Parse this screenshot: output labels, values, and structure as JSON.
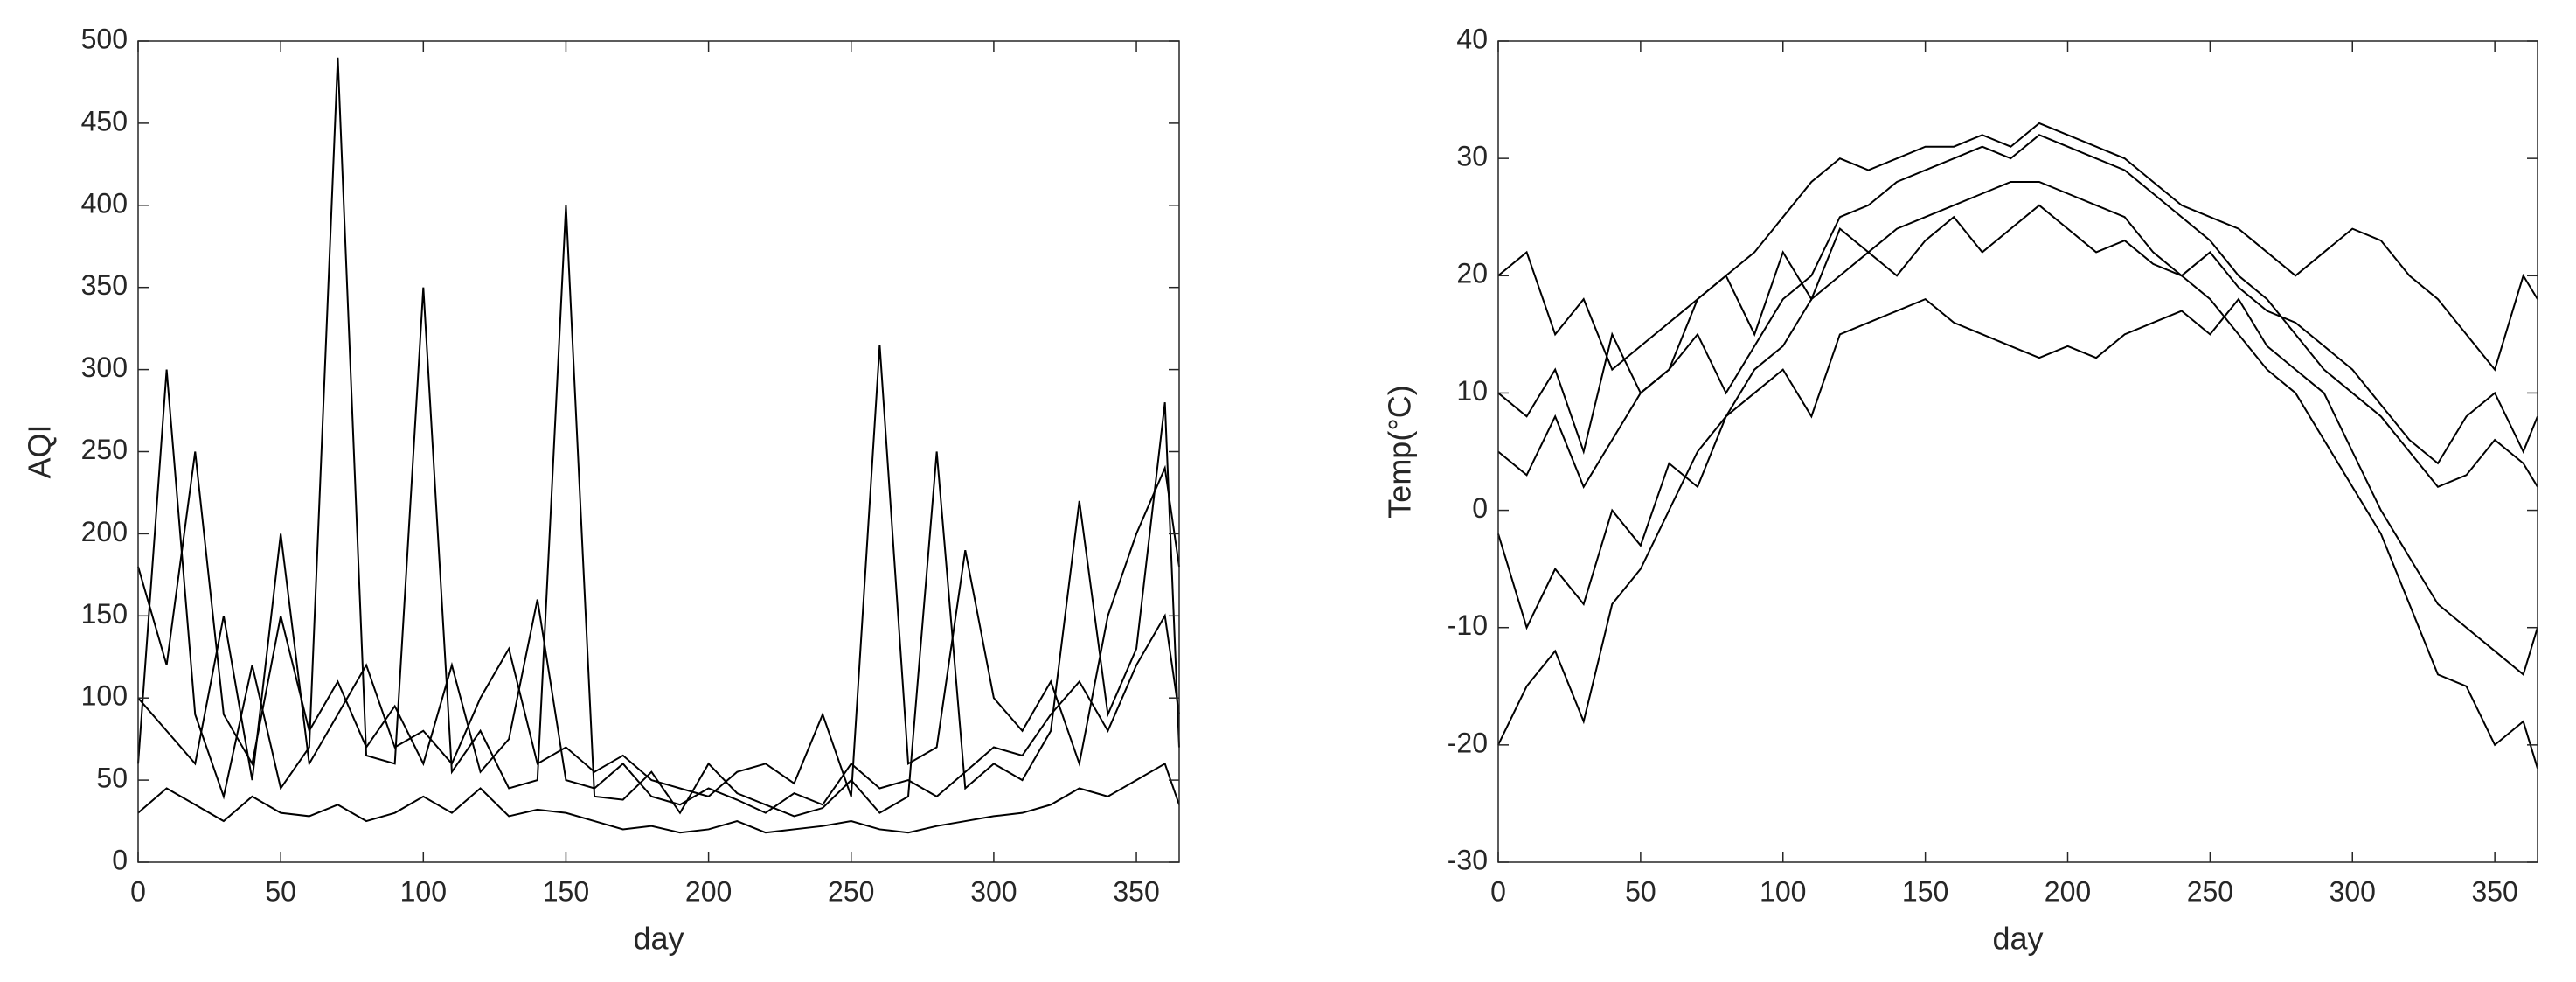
{
  "chart_data": [
    {
      "type": "line",
      "xlabel": "day",
      "ylabel": "AQI",
      "x": [
        0,
        10,
        20,
        30,
        40,
        50,
        60,
        70,
        80,
        90,
        100,
        110,
        120,
        130,
        140,
        150,
        160,
        170,
        180,
        190,
        200,
        210,
        220,
        230,
        240,
        250,
        260,
        270,
        280,
        290,
        300,
        310,
        320,
        330,
        340,
        350,
        360,
        365
      ],
      "xlim": [
        0,
        365
      ],
      "xticks": [
        0,
        50,
        100,
        150,
        200,
        250,
        300,
        350
      ],
      "ylim": [
        0,
        500
      ],
      "yticks": [
        0,
        50,
        100,
        150,
        200,
        250,
        300,
        350,
        400,
        450,
        500
      ],
      "grid": false,
      "series": [
        {
          "color": "#000000",
          "values": [
            180,
            120,
            250,
            90,
            60,
            150,
            80,
            110,
            70,
            95,
            60,
            120,
            55,
            75,
            160,
            50,
            45,
            60,
            40,
            35,
            45,
            38,
            30,
            42,
            35,
            60,
            45,
            50,
            40,
            55,
            70,
            65,
            90,
            110,
            80,
            120,
            150,
            90
          ]
        },
        {
          "color": "#000000",
          "values": [
            60,
            300,
            90,
            40,
            120,
            45,
            70,
            490,
            65,
            60,
            350,
            55,
            80,
            45,
            50,
            400,
            40,
            38,
            55,
            30,
            60,
            42,
            35,
            28,
            33,
            50,
            30,
            40,
            250,
            45,
            60,
            50,
            80,
            220,
            90,
            130,
            280,
            70
          ]
        },
        {
          "color": "#000000",
          "values": [
            30,
            45,
            35,
            25,
            40,
            30,
            28,
            35,
            25,
            30,
            40,
            30,
            45,
            28,
            32,
            30,
            25,
            20,
            22,
            18,
            20,
            25,
            18,
            20,
            22,
            25,
            20,
            18,
            22,
            25,
            28,
            30,
            35,
            45,
            40,
            50,
            60,
            35
          ]
        },
        {
          "color": "#000000",
          "values": [
            100,
            80,
            60,
            150,
            50,
            200,
            60,
            90,
            120,
            70,
            80,
            60,
            100,
            130,
            60,
            70,
            55,
            65,
            50,
            45,
            40,
            55,
            60,
            48,
            90,
            40,
            315,
            60,
            70,
            190,
            100,
            80,
            110,
            60,
            150,
            200,
            240,
            180
          ]
        }
      ]
    },
    {
      "type": "line",
      "xlabel": "day",
      "ylabel": "Temp(°C)",
      "x": [
        0,
        10,
        20,
        30,
        40,
        50,
        60,
        70,
        80,
        90,
        100,
        110,
        120,
        130,
        140,
        150,
        160,
        170,
        180,
        190,
        200,
        210,
        220,
        230,
        240,
        250,
        260,
        270,
        280,
        290,
        300,
        310,
        320,
        330,
        340,
        350,
        360,
        365
      ],
      "xlim": [
        0,
        365
      ],
      "xticks": [
        0,
        50,
        100,
        150,
        200,
        250,
        300,
        350
      ],
      "ylim": [
        -30,
        40
      ],
      "yticks": [
        -30,
        -20,
        -10,
        0,
        10,
        20,
        30,
        40
      ],
      "grid": false,
      "series": [
        {
          "color": "#000000",
          "values": [
            -20,
            -15,
            -12,
            -18,
            -8,
            -5,
            0,
            5,
            8,
            12,
            14,
            18,
            20,
            22,
            24,
            25,
            26,
            27,
            28,
            28,
            27,
            26,
            25,
            22,
            20,
            18,
            15,
            12,
            10,
            6,
            2,
            -2,
            -8,
            -14,
            -15,
            -20,
            -18,
            -22
          ]
        },
        {
          "color": "#000000",
          "values": [
            5,
            3,
            8,
            2,
            6,
            10,
            12,
            15,
            10,
            14,
            18,
            20,
            25,
            26,
            28,
            29,
            30,
            31,
            30,
            32,
            31,
            30,
            29,
            27,
            25,
            23,
            20,
            18,
            15,
            12,
            10,
            8,
            5,
            2,
            3,
            6,
            4,
            2
          ]
        },
        {
          "color": "#000000",
          "values": [
            20,
            22,
            15,
            18,
            12,
            14,
            16,
            18,
            20,
            22,
            25,
            28,
            30,
            29,
            30,
            31,
            31,
            32,
            31,
            33,
            32,
            31,
            30,
            28,
            26,
            25,
            24,
            22,
            20,
            22,
            24,
            23,
            20,
            18,
            15,
            12,
            20,
            18
          ]
        },
        {
          "color": "#000000",
          "values": [
            -2,
            -10,
            -5,
            -8,
            0,
            -3,
            4,
            2,
            8,
            10,
            12,
            8,
            15,
            16,
            17,
            18,
            16,
            15,
            14,
            13,
            14,
            13,
            15,
            16,
            17,
            15,
            18,
            14,
            12,
            10,
            5,
            0,
            -4,
            -8,
            -10,
            -12,
            -14,
            -10
          ]
        },
        {
          "color": "#000000",
          "values": [
            10,
            8,
            12,
            5,
            15,
            10,
            12,
            18,
            20,
            15,
            22,
            18,
            24,
            22,
            20,
            23,
            25,
            22,
            24,
            26,
            24,
            22,
            23,
            21,
            20,
            22,
            19,
            17,
            16,
            14,
            12,
            9,
            6,
            4,
            8,
            10,
            5,
            8
          ]
        }
      ]
    }
  ]
}
